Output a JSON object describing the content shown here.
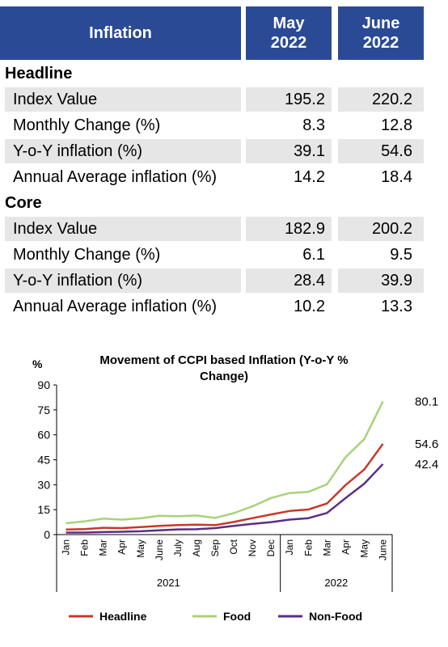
{
  "table": {
    "header": {
      "label": "Inflation",
      "col1": "May\n2022",
      "col2": "June\n2022"
    },
    "sections": [
      {
        "title": "Headline",
        "rows": [
          {
            "label": "Index Value",
            "v1": "195.2",
            "v2": "220.2",
            "shaded": true
          },
          {
            "label": "Monthly Change (%)",
            "v1": "8.3",
            "v2": "12.8",
            "shaded": false
          },
          {
            "label": "Y-o-Y inflation (%)",
            "v1": "39.1",
            "v2": "54.6",
            "shaded": true
          },
          {
            "label": "Annual Average inflation (%)",
            "v1": "14.2",
            "v2": "18.4",
            "shaded": false
          }
        ]
      },
      {
        "title": "Core",
        "rows": [
          {
            "label": "Index Value",
            "v1": "182.9",
            "v2": "200.2",
            "shaded": true
          },
          {
            "label": "Monthly Change (%)",
            "v1": "6.1",
            "v2": "9.5",
            "shaded": false
          },
          {
            "label": "Y-o-Y inflation (%)",
            "v1": "28.4",
            "v2": "39.9",
            "shaded": true
          },
          {
            "label": "Annual Average inflation (%)",
            "v1": "10.2",
            "v2": "13.3",
            "shaded": false
          }
        ]
      }
    ]
  },
  "chart_data": {
    "type": "line",
    "title": "Movement of CCPI based Inflation (Y-o-Y % Change)",
    "title_lines": [
      "Movement of CCPI based Inflation (Y-o-Y %",
      "Change)"
    ],
    "ylabel": "%",
    "ylim": [
      0,
      90
    ],
    "yticks": [
      0,
      15,
      30,
      45,
      60,
      75,
      90
    ],
    "grid": false,
    "legend_position": "bottom",
    "categories": [
      "Jan",
      "Feb",
      "Mar",
      "Apr",
      "May",
      "June",
      "July",
      "Aug",
      "Sep",
      "Oct",
      "Nov",
      "Dec",
      "Jan",
      "Feb",
      "Mar",
      "Apr",
      "May",
      "June"
    ],
    "year_groups": [
      {
        "label": "2021",
        "count": 12
      },
      {
        "label": "2022",
        "count": 6
      }
    ],
    "series": [
      {
        "name": "Headline",
        "color": "#c8382a",
        "values": [
          3.0,
          3.3,
          4.1,
          3.9,
          4.5,
          5.2,
          5.7,
          6.0,
          5.7,
          7.6,
          9.9,
          12.1,
          14.2,
          15.1,
          18.7,
          29.8,
          39.1,
          54.6
        ],
        "end_label": "54.6"
      },
      {
        "name": "Food",
        "color": "#a8d27b",
        "values": [
          6.8,
          8.0,
          9.6,
          9.0,
          9.8,
          11.3,
          11.0,
          11.5,
          10.0,
          12.9,
          17.0,
          22.0,
          25.0,
          25.7,
          30.2,
          46.6,
          57.4,
          80.1
        ],
        "end_label": "80.1"
      },
      {
        "name": "Non-Food",
        "color": "#5b2d86",
        "values": [
          1.2,
          1.2,
          1.5,
          1.7,
          2.0,
          2.6,
          3.1,
          3.2,
          3.9,
          5.2,
          6.4,
          7.5,
          9.0,
          9.9,
          13.0,
          22.0,
          30.6,
          42.4
        ],
        "end_label": "42.4"
      }
    ]
  }
}
